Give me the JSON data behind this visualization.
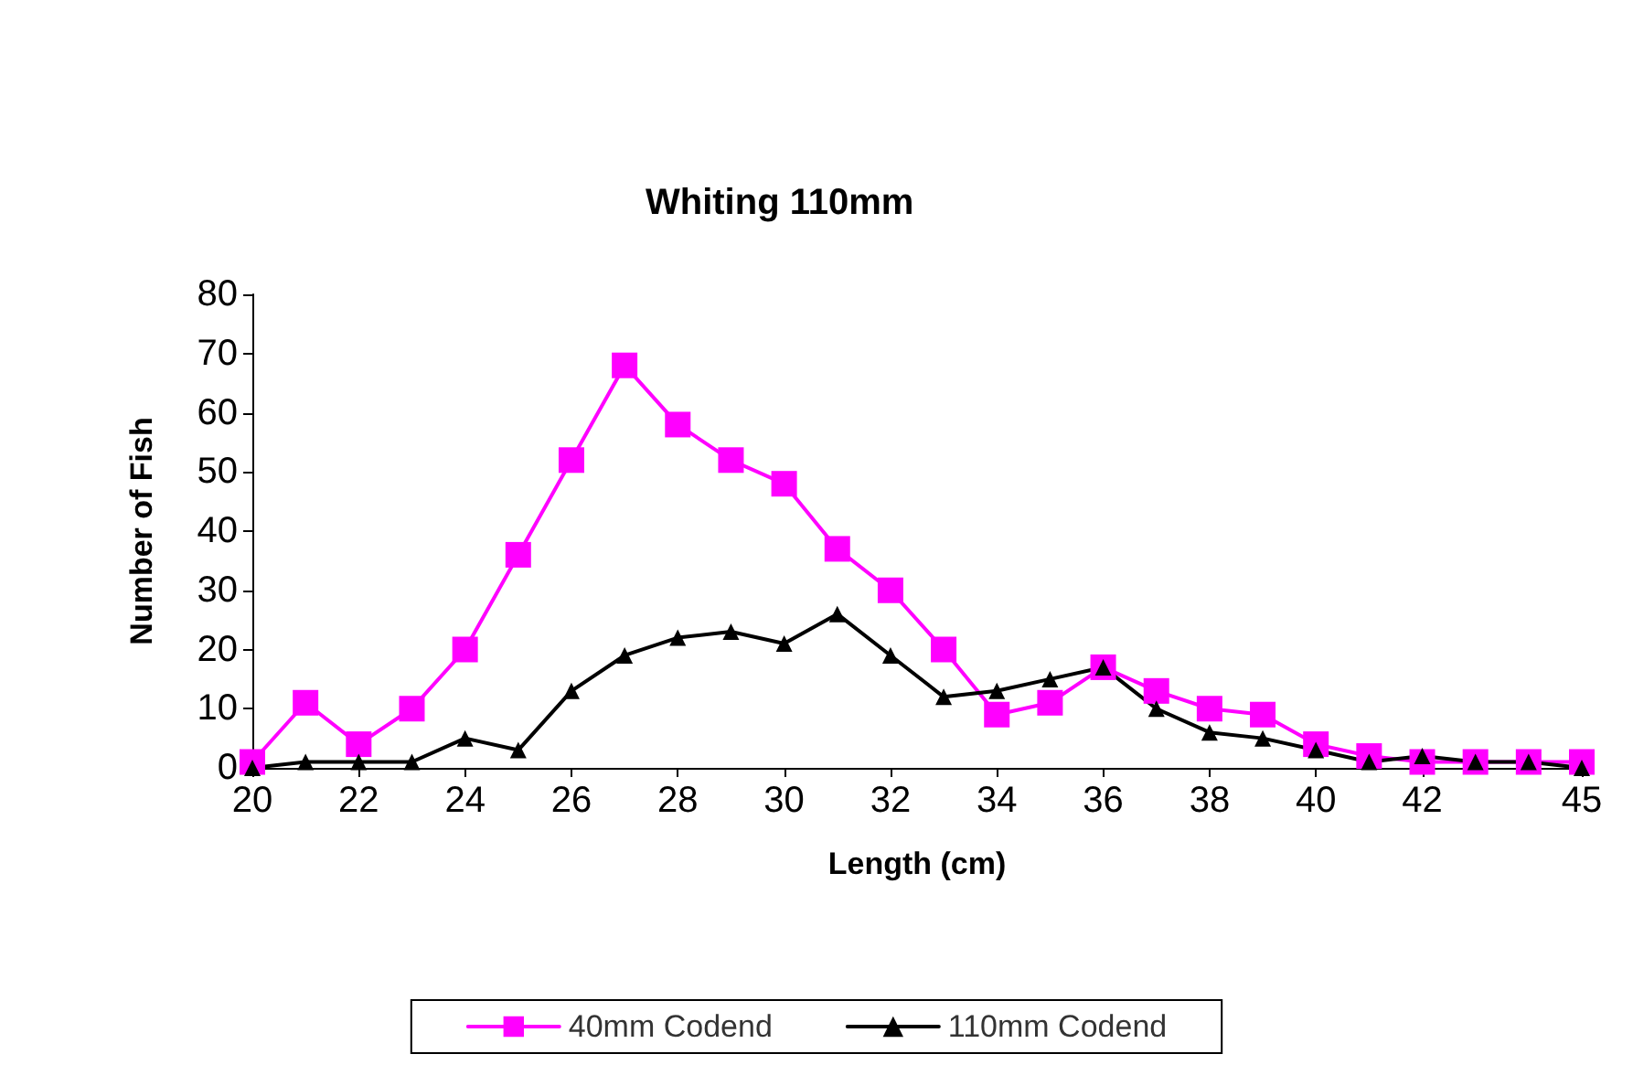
{
  "chart_data": {
    "type": "line",
    "title": "Whiting 110mm",
    "xlabel": "Length (cm)",
    "ylabel": "Number of Fish",
    "x": [
      20,
      21,
      22,
      23,
      24,
      25,
      26,
      27,
      28,
      29,
      30,
      31,
      32,
      33,
      34,
      35,
      36,
      37,
      38,
      39,
      40,
      41,
      42,
      43,
      44,
      45
    ],
    "series": [
      {
        "name": "40mm Codend",
        "color": "#ff00ff",
        "marker": "square",
        "values": [
          1,
          11,
          4,
          10,
          20,
          36,
          52,
          68,
          58,
          52,
          48,
          37,
          30,
          20,
          9,
          11,
          17,
          13,
          10,
          9,
          4,
          2,
          1,
          1,
          1,
          1
        ]
      },
      {
        "name": "110mm Codend",
        "color": "#000000",
        "marker": "triangle",
        "values": [
          0,
          1,
          1,
          1,
          5,
          3,
          13,
          19,
          22,
          23,
          21,
          26,
          19,
          12,
          13,
          15,
          17,
          10,
          6,
          5,
          3,
          1,
          2,
          1,
          1,
          0
        ]
      }
    ],
    "xlim": [
      20,
      45
    ],
    "xticks": [
      20,
      22,
      24,
      26,
      28,
      30,
      32,
      34,
      36,
      38,
      40,
      42,
      45
    ],
    "ylim": [
      0,
      80
    ],
    "yticks": [
      0,
      10,
      20,
      30,
      40,
      50,
      60,
      70,
      80
    ],
    "grid": false,
    "legend": "bottom",
    "line_style": "solid"
  }
}
